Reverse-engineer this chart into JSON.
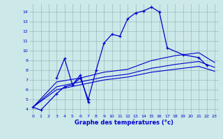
{
  "xlabel": "Graphe des températures (°c)",
  "xlim": [
    -0.5,
    23.5
  ],
  "ylim": [
    3.5,
    14.8
  ],
  "yticks": [
    4,
    5,
    6,
    7,
    8,
    9,
    10,
    11,
    12,
    13,
    14
  ],
  "xticks": [
    0,
    1,
    2,
    3,
    4,
    5,
    6,
    7,
    8,
    9,
    10,
    11,
    12,
    13,
    14,
    15,
    16,
    17,
    18,
    19,
    20,
    21,
    22,
    23
  ],
  "background_color": "#cce8e8",
  "grid_color": "#99bbbb",
  "line_color": "#0000cc",
  "line_color2": "#0033aa",
  "lines": [
    {
      "x": [
        0,
        1,
        3,
        4,
        5,
        6,
        7,
        8,
        9,
        10,
        11,
        12,
        13,
        14,
        15,
        16,
        17,
        19,
        21,
        22
      ],
      "y": [
        4.2,
        3.9,
        5.6,
        6.3,
        6.5,
        7.2,
        5.0,
        8.0,
        10.8,
        11.7,
        11.5,
        13.3,
        13.9,
        14.1,
        14.5,
        14.0,
        10.3,
        9.6,
        9.3,
        8.5
      ]
    },
    {
      "x": [
        3,
        4,
        5,
        6,
        7
      ],
      "y": [
        7.2,
        9.2,
        6.5,
        7.5,
        4.7
      ]
    },
    {
      "x": [
        0,
        3,
        6,
        9,
        12,
        15,
        18,
        21,
        23
      ],
      "y": [
        4.2,
        6.8,
        7.2,
        7.8,
        8.1,
        9.0,
        9.5,
        9.8,
        8.8
      ]
    },
    {
      "x": [
        0,
        3,
        6,
        9,
        12,
        15,
        18,
        21,
        23
      ],
      "y": [
        4.2,
        6.3,
        6.8,
        7.3,
        7.6,
        8.2,
        8.6,
        8.9,
        8.3
      ]
    },
    {
      "x": [
        0,
        3,
        6,
        9,
        12,
        15,
        18,
        21,
        23
      ],
      "y": [
        4.2,
        6.0,
        6.5,
        7.0,
        7.3,
        7.8,
        8.1,
        8.4,
        7.9
      ]
    }
  ]
}
